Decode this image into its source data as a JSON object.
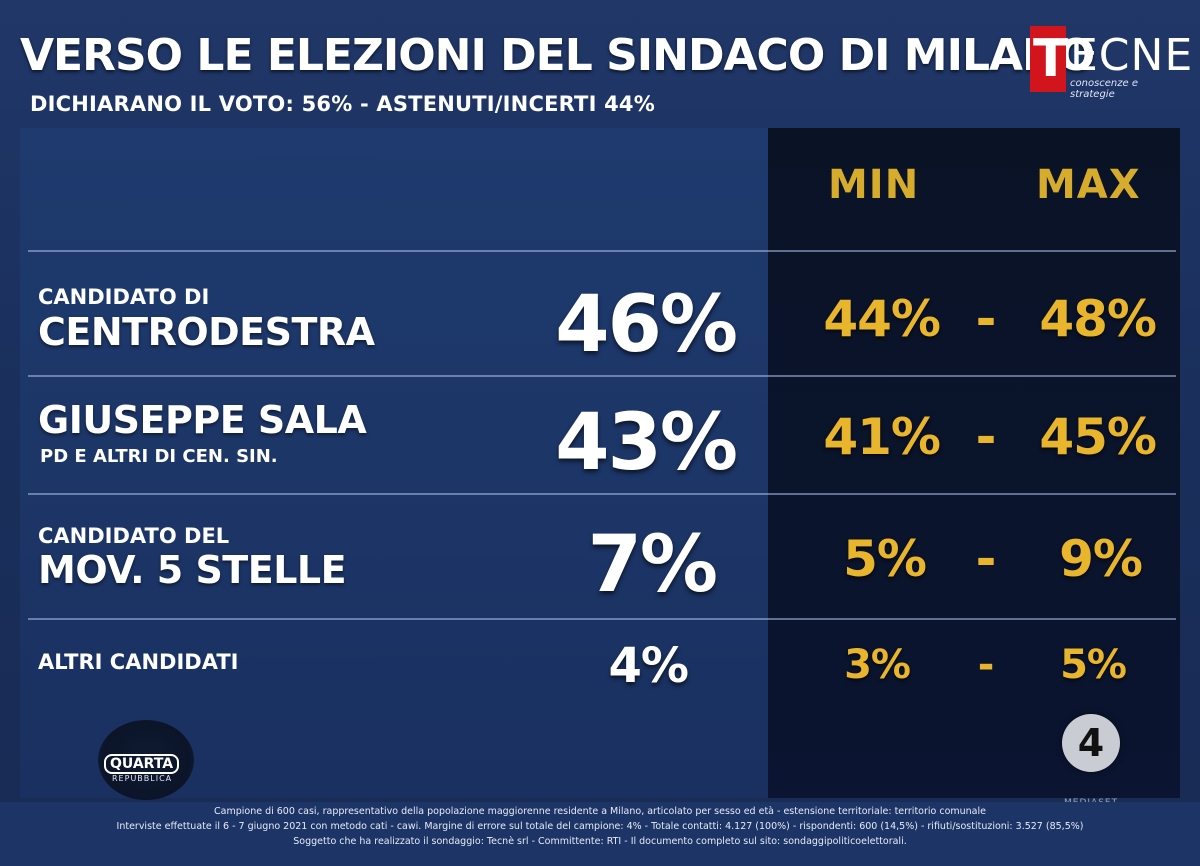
{
  "header": {
    "title": "VERSO LE ELEZIONI DEL SINDACO DI MILANO",
    "subtitle": "DICHIARANO IL VOTO: 56% - ASTENUTI/INCERTI 44%"
  },
  "logo": {
    "initial": "T",
    "rest": "ECNE",
    "tagline": "conoscenze e strategie"
  },
  "columns": {
    "min": "MIN",
    "max": "MAX"
  },
  "rows": [
    {
      "line1": "CANDIDATO DI",
      "line2": "CENTRODESTRA",
      "value": "46%",
      "min": "44%",
      "max": "48%",
      "sep": "-"
    },
    {
      "line1": "GIUSEPPE SALA",
      "line2": "PD E ALTRI DI CEN. SIN.",
      "value": "43%",
      "min": "41%",
      "max": "45%",
      "sep": "-"
    },
    {
      "line1": "CANDIDATO DEL",
      "line2": "MOV. 5 STELLE",
      "value": "7%",
      "min": "5%",
      "max": "9%",
      "sep": "-"
    },
    {
      "line1": "ALTRI CANDIDATI",
      "value": "4%",
      "min": "3%",
      "max": "5%",
      "sep": "-"
    }
  ],
  "brand": {
    "program": "QUARTA",
    "program_sub": "REPUBBLICA",
    "channel": "4",
    "channel_sub": "MEDIASET"
  },
  "footer": {
    "line1": "Campione di 600 casi, rappresentativo della popolazione maggiorenne residente a Milano, articolato per sesso ed età - estensione territoriale: territorio comunale",
    "line2": "Interviste effettuate il 6 - 7 giugno 2021 con metodo cati - cawi. Margine di errore sul totale del campione: 4% - Totale contatti: 4.127 (100%) - rispondenti: 600 (14,5%) - rifiuti/sostituzioni: 3.527 (85,5%)",
    "line3": "Soggetto che ha realizzato il sondaggio: Tecnè srl - Committente: RTI - Il documento completo sul sito: sondaggipoliticoelettorali."
  },
  "colors": {
    "accent": "#e8b52c",
    "background": "#1b2d55",
    "dark_panel": "#0a1326",
    "logo_red": "#d2141c"
  }
}
